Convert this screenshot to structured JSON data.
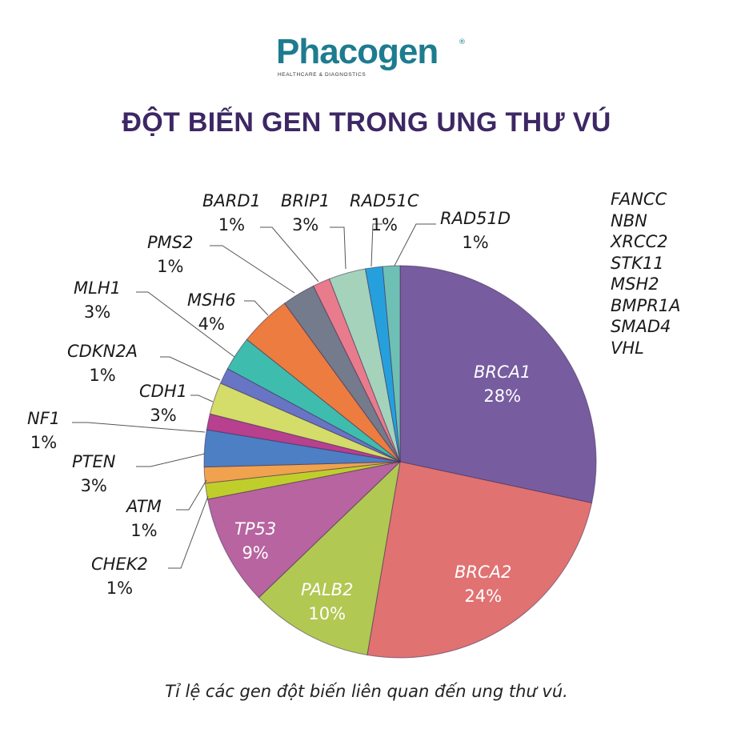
{
  "logo": {
    "brand": "Phacogen",
    "tagline": "HEALTHCARE & DIAGNOSTICS",
    "registered": "®",
    "brand_color": "#1d7c8f",
    "accent_color": "#b0252d"
  },
  "title": "ĐỘT BIẾN GEN TRONG UNG THƯ VÚ",
  "caption": "Tỉ lệ các gen đột biến liên quan đến ung thư vú.",
  "side_list": [
    "FANCC",
    "NBN",
    "XRCC2",
    "STK11",
    "MSH2",
    "BMPR1A",
    "SMAD4",
    "VHL"
  ],
  "chart_data": {
    "type": "pie",
    "title": "ĐỘT BIẾN GEN TRONG UNG THƯ VÚ",
    "start_angle": "12 o'clock, clockwise",
    "legend_position": "none (callout labels)",
    "categories": [
      "BRCA1",
      "BRCA2",
      "PALB2",
      "TP53",
      "CHEK2",
      "ATM",
      "PTEN",
      "NF1",
      "CDH1",
      "CDKN2A",
      "MLH1",
      "MSH6",
      "PMS2",
      "BARD1",
      "BRIP1",
      "RAD51C",
      "RAD51D"
    ],
    "values": [
      28,
      24,
      10,
      9,
      1,
      1,
      3,
      1,
      3,
      1,
      3,
      4,
      1,
      1,
      3,
      1,
      1
    ],
    "labels": [
      "28%",
      "24%",
      "10%",
      "9%",
      "1%",
      "1%",
      "3%",
      "1%",
      "3%",
      "1%",
      "3%",
      "4%",
      "1%",
      "1%",
      "3%",
      "1%",
      "1%"
    ],
    "visual_weights": [
      28,
      24,
      10,
      9,
      1.3,
      1.3,
      3,
      1.3,
      2.6,
      1.3,
      2.8,
      4.2,
      2.7,
      1.4,
      3,
      1.4,
      1.4
    ],
    "colors": [
      "#775c9f",
      "#e07272",
      "#b1c853",
      "#b764a0",
      "#c0ce2c",
      "#f0a24e",
      "#4d7fc4",
      "#b7408f",
      "#d4dc6a",
      "#6875c4",
      "#3ebcae",
      "#ec7c40",
      "#737b8d",
      "#e87c8c",
      "#a5d2bb",
      "#26a0dc",
      "#6ec0b4"
    ],
    "other_genes_unlabeled": [
      "FANCC",
      "NBN",
      "XRCC2",
      "STK11",
      "MSH2",
      "BMPR1A",
      "SMAD4",
      "VHL"
    ]
  }
}
